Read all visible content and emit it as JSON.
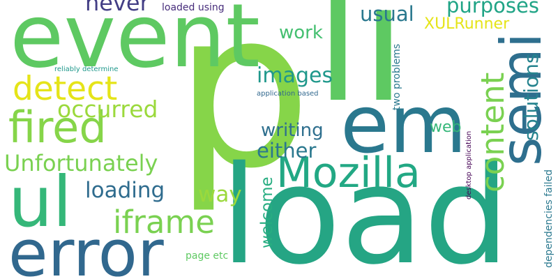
{
  "words": {
    "p": {
      "text": "p",
      "color": "#86d549"
    },
    "li": {
      "text": "li",
      "color": "#5ec962"
    },
    "load": {
      "text": "load",
      "color": "#25a584"
    },
    "event": {
      "text": "event",
      "color": "#5ec962"
    },
    "em": {
      "text": "em",
      "color": "#2a788e"
    },
    "ul": {
      "text": "ul",
      "color": "#35b779"
    },
    "error": {
      "text": "error",
      "color": "#31688e"
    },
    "fired": {
      "text": "fired",
      "color": "#86d549"
    },
    "semi": {
      "text": "semi",
      "color": "#2e6f8e"
    },
    "mozilla": {
      "text": "Mozilla",
      "color": "#22a884"
    },
    "detect": {
      "text": "detect",
      "color": "#e5e419"
    },
    "unfortunately": {
      "text": "Unfortunately",
      "color": "#7ad151"
    },
    "iframe": {
      "text": "iframe",
      "color": "#7ad151"
    },
    "content": {
      "text": "content",
      "color": "#7ad151"
    },
    "occurred": {
      "text": "occurred",
      "color": "#9bd93c"
    },
    "images": {
      "text": "images",
      "color": "#1f988b"
    },
    "loading": {
      "text": "loading",
      "color": "#2f6c8e"
    },
    "either": {
      "text": "either",
      "color": "#2a788e"
    },
    "writing": {
      "text": "writing",
      "color": "#2e6f8e"
    },
    "never": {
      "text": "never",
      "color": "#433e85"
    },
    "usual": {
      "text": "usual",
      "color": "#2a788e"
    },
    "purposes": {
      "text": "purposes",
      "color": "#20a486"
    },
    "solutions": {
      "text": "solutions",
      "color": "#25838e"
    },
    "way": {
      "text": "way",
      "color": "#9bd93c"
    },
    "work": {
      "text": "work",
      "color": "#44bf70"
    },
    "web": {
      "text": "web",
      "color": "#35b779"
    },
    "welcome": {
      "text": "welcome",
      "color": "#27ad81"
    },
    "xulrunner": {
      "text": "XULRunner",
      "color": "#e5e419"
    },
    "loaded_using": {
      "text": "loaded using",
      "color": "#472d7b"
    },
    "page_etc": {
      "text": "page etc",
      "color": "#5ec962"
    },
    "dependencies_failed": {
      "text": "dependencies failed",
      "color": "#2a788e"
    },
    "two_problems": {
      "text": "two problems",
      "color": "#2a788e"
    },
    "reliably_determine": {
      "text": "reliably determine",
      "color": "#1f988b"
    },
    "application_based": {
      "text": "application based",
      "color": "#31688e"
    },
    "desktop_application": {
      "text": "desktop application",
      "color": "#440154"
    }
  }
}
